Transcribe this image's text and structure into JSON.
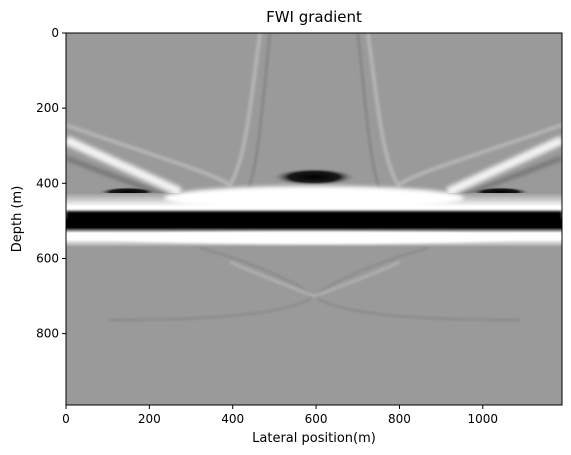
{
  "chart_data": {
    "type": "heatmap",
    "title": "FWI gradient",
    "xlabel": "Lateral position(m)",
    "ylabel": "Depth (m)",
    "xlim": [
      0,
      1190
    ],
    "ylim": [
      990,
      0
    ],
    "xticks": [
      "0",
      "200",
      "400",
      "600",
      "800",
      "1000"
    ],
    "yticks": [
      "0",
      "200",
      "400",
      "600",
      "800"
    ],
    "colormap": "gray",
    "grid": false,
    "features": [
      {
        "name": "strong reflector",
        "depth": 500,
        "x_range": [
          0,
          1190
        ],
        "value": -1
      },
      {
        "name": "white band above reflector",
        "depth": 465,
        "x_range": [
          0,
          1190
        ],
        "value": 1
      },
      {
        "name": "white band below reflector",
        "depth": 540,
        "x_range": [
          0,
          1190
        ],
        "value": 1
      },
      {
        "name": "dark spot",
        "x": 600,
        "depth": 385,
        "value": -0.9
      },
      {
        "name": "dark flank left",
        "x": 150,
        "depth": 430,
        "value": -0.7
      },
      {
        "name": "dark flank right",
        "x": 1050,
        "depth": 430,
        "value": -0.7
      },
      {
        "name": "diffraction arc left",
        "apex_x": 0,
        "reaches": [
          [
            500,
            0
          ],
          [
            280,
            420
          ]
        ]
      },
      {
        "name": "diffraction arc right",
        "apex_x": 1190,
        "reaches": [
          [
            700,
            0
          ],
          [
            910,
            420
          ]
        ]
      }
    ]
  }
}
